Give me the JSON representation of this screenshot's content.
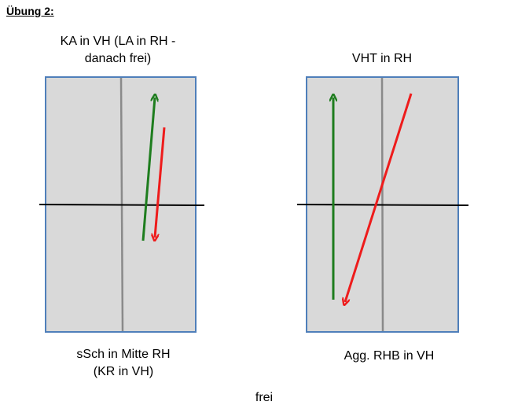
{
  "heading": "Übung 2:",
  "left_panel": {
    "caption_top": [
      "KA in VH (LA in RH -",
      "danach frei)"
    ],
    "caption_bottom": [
      "sSch in Mitte RH",
      "(KR in VH)"
    ]
  },
  "right_panel": {
    "caption_top": [
      "VHT in RH"
    ],
    "caption_bottom": [
      "Agg. RHB in VH"
    ]
  },
  "footer": "frei",
  "colors": {
    "panel_fill": "#d9d9d9",
    "panel_border": "#4f7fba",
    "center_line": "#8a8a8a",
    "net_line": "#000000",
    "green_arrow": "#1e7d1e",
    "red_arrow": "#ee1c1c"
  }
}
